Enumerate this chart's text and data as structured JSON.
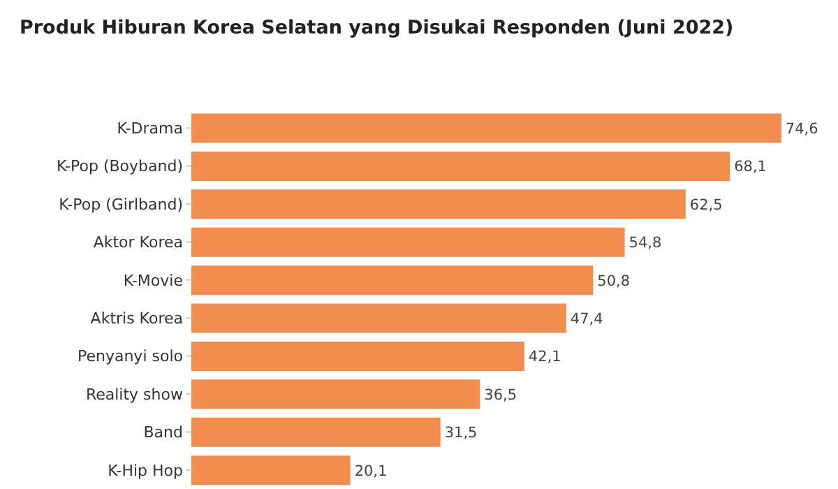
{
  "chart_data": {
    "type": "bar",
    "orientation": "horizontal",
    "title": "Produk Hiburan Korea Selatan yang Disukai Responden (Juni 2022)",
    "categories": [
      "K-Drama",
      "K-Pop (Boyband)",
      "K-Pop (Girlband)",
      "Aktor Korea",
      "K-Movie",
      "Aktris Korea",
      "Penyanyi solo",
      "Reality show",
      "Band",
      "K-Hip Hop"
    ],
    "values": [
      74.6,
      68.1,
      62.5,
      54.8,
      50.8,
      47.4,
      42.1,
      36.5,
      31.5,
      20.1
    ],
    "value_labels": [
      "74,6",
      "68,1",
      "62,5",
      "54,8",
      "50,8",
      "47,4",
      "42,1",
      "36,5",
      "31,5",
      "20,1"
    ],
    "color": "#f28c4f"
  }
}
